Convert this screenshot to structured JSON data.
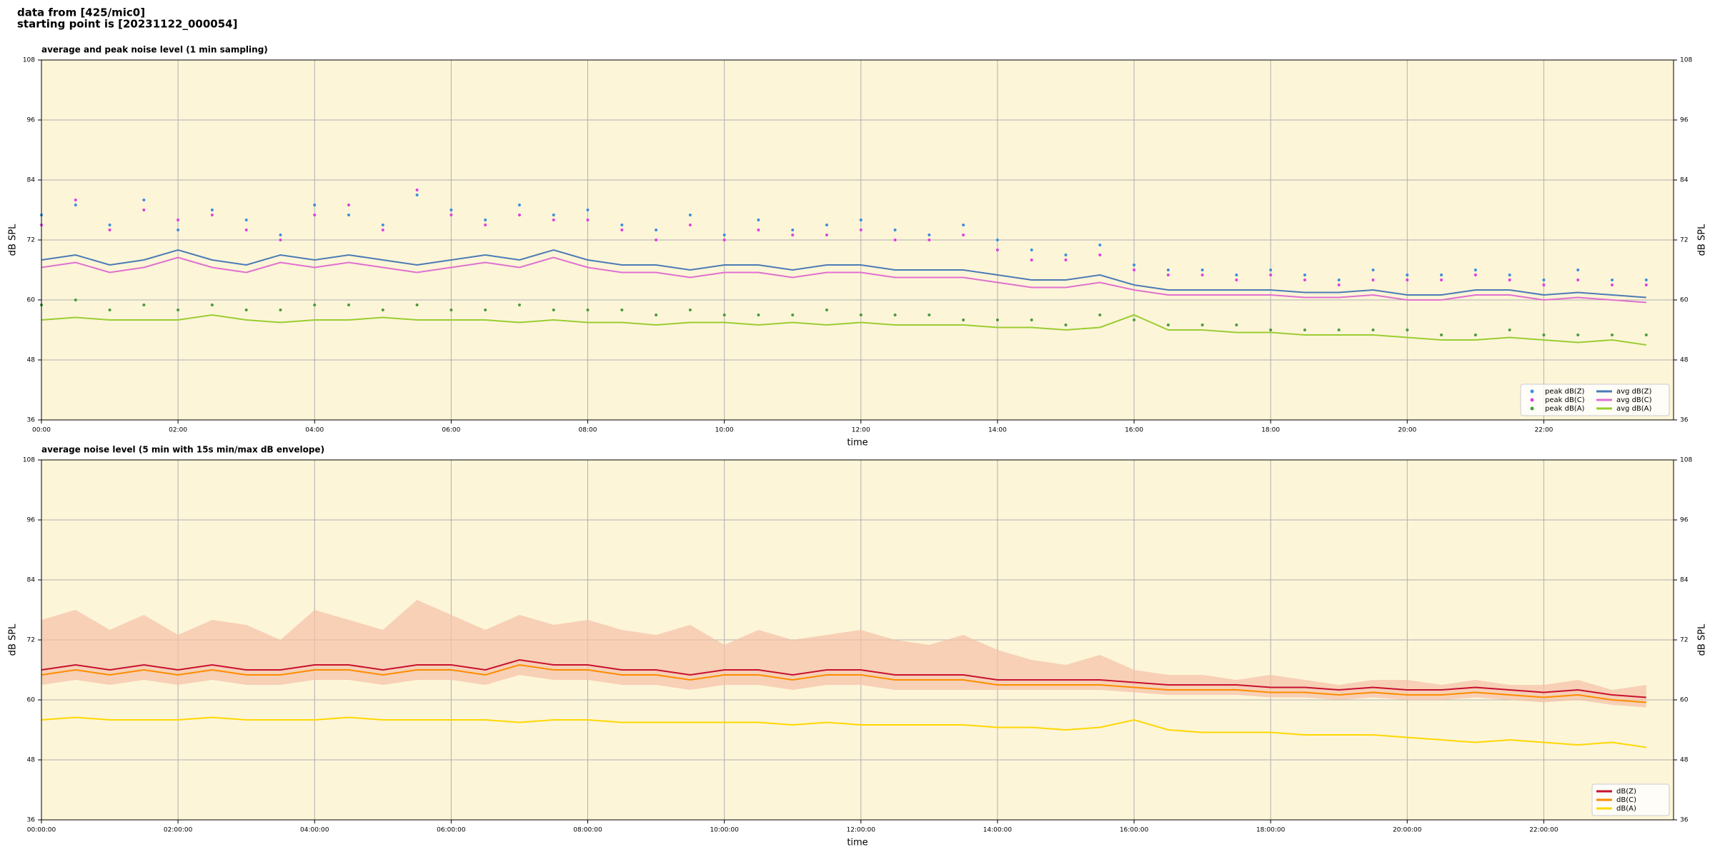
{
  "header": {
    "line1": "data from [425/mic0]",
    "line2": "starting point is [20231122_000054]"
  },
  "chart_data": [
    {
      "type": "line",
      "title": "average and peak noise level (1 min sampling)",
      "xlabel": "time",
      "ylabel": "dB SPL",
      "xlim": [
        0,
        23.9
      ],
      "ylim": [
        36,
        108
      ],
      "yticks": [
        36,
        48,
        60,
        72,
        84,
        96,
        108
      ],
      "xticks": [
        {
          "value": 0,
          "label": "00:00"
        },
        {
          "value": 2,
          "label": "02:00"
        },
        {
          "value": 4,
          "label": "04:00"
        },
        {
          "value": 6,
          "label": "06:00"
        },
        {
          "value": 8,
          "label": "08:00"
        },
        {
          "value": 10,
          "label": "10:00"
        },
        {
          "value": 12,
          "label": "12:00"
        },
        {
          "value": 14,
          "label": "14:00"
        },
        {
          "value": 16,
          "label": "16:00"
        },
        {
          "value": 18,
          "label": "18:00"
        },
        {
          "value": 20,
          "label": "20:00"
        },
        {
          "value": 22,
          "label": "22:00"
        }
      ],
      "grid": true,
      "legend": "lower right",
      "legend_columns": 2,
      "background": "#fdf5d8",
      "x": [
        0,
        0.5,
        1,
        1.5,
        2,
        2.5,
        3,
        3.5,
        4,
        4.5,
        5,
        5.5,
        6,
        6.5,
        7,
        7.5,
        8,
        8.5,
        9,
        9.5,
        10,
        10.5,
        11,
        11.5,
        12,
        12.5,
        13,
        13.5,
        14,
        14.5,
        15,
        15.5,
        16,
        16.5,
        17,
        17.5,
        18,
        18.5,
        19,
        19.5,
        20,
        20.5,
        21,
        21.5,
        22,
        22.5,
        23,
        23.5
      ],
      "series": [
        {
          "name": "peak dB(Z)",
          "mode": "scatter",
          "color": "#3c8fdc",
          "values": [
            77,
            79,
            75,
            80,
            74,
            78,
            76,
            73,
            79,
            77,
            75,
            81,
            78,
            76,
            79,
            77,
            78,
            75,
            74,
            77,
            73,
            76,
            74,
            75,
            76,
            74,
            73,
            75,
            72,
            70,
            69,
            71,
            67,
            66,
            66,
            65,
            66,
            65,
            64,
            66,
            65,
            65,
            66,
            65,
            64,
            66,
            64,
            64
          ]
        },
        {
          "name": "peak dB(C)",
          "mode": "scatter",
          "color": "#e040e0",
          "values": [
            75,
            80,
            74,
            78,
            76,
            77,
            74,
            72,
            77,
            79,
            74,
            82,
            77,
            75,
            77,
            76,
            76,
            74,
            72,
            75,
            72,
            74,
            73,
            73,
            74,
            72,
            72,
            73,
            70,
            68,
            68,
            69,
            66,
            65,
            65,
            64,
            65,
            64,
            63,
            64,
            64,
            64,
            65,
            64,
            63,
            64,
            63,
            63
          ]
        },
        {
          "name": "peak dB(A)",
          "mode": "scatter",
          "color": "#4a9a40",
          "values": [
            59,
            60,
            58,
            59,
            58,
            59,
            58,
            58,
            59,
            59,
            58,
            59,
            58,
            58,
            59,
            58,
            58,
            58,
            57,
            58,
            57,
            57,
            57,
            58,
            57,
            57,
            57,
            56,
            56,
            56,
            55,
            57,
            56,
            55,
            55,
            55,
            54,
            54,
            54,
            54,
            54,
            53,
            53,
            54,
            53,
            53,
            53,
            53
          ]
        },
        {
          "name": "avg dB(Z)",
          "mode": "line",
          "color": "#4a7bb5",
          "values": [
            68,
            69,
            67,
            68,
            70,
            68,
            67,
            69,
            68,
            69,
            68,
            67,
            68,
            69,
            68,
            70,
            68,
            67,
            67,
            66,
            67,
            67,
            66,
            67,
            67,
            66,
            66,
            66,
            65,
            64,
            64,
            65,
            63,
            62,
            62,
            62,
            62,
            61.5,
            61.5,
            62,
            61,
            61,
            62,
            62,
            61,
            61.5,
            61,
            60.5
          ]
        },
        {
          "name": "avg dB(C)",
          "mode": "line",
          "color": "#e070d0",
          "values": [
            66.5,
            67.5,
            65.5,
            66.5,
            68.5,
            66.5,
            65.5,
            67.5,
            66.5,
            67.5,
            66.5,
            65.5,
            66.5,
            67.5,
            66.5,
            68.5,
            66.5,
            65.5,
            65.5,
            64.5,
            65.5,
            65.5,
            64.5,
            65.5,
            65.5,
            64.5,
            64.5,
            64.5,
            63.5,
            62.5,
            62.5,
            63.5,
            62,
            61,
            61,
            61,
            61,
            60.5,
            60.5,
            61,
            60,
            60,
            61,
            61,
            60,
            60.5,
            60,
            59.5
          ]
        },
        {
          "name": "avg dB(A)",
          "mode": "line",
          "color": "#9acd32",
          "values": [
            56,
            56.5,
            56,
            56,
            56,
            57,
            56,
            55.5,
            56,
            56,
            56.5,
            56,
            56,
            56,
            55.5,
            56,
            55.5,
            55.5,
            55,
            55.5,
            55.5,
            55,
            55.5,
            55,
            55.5,
            55,
            55,
            55,
            54.5,
            54.5,
            54,
            54.5,
            57,
            54,
            54,
            53.5,
            53.5,
            53,
            53,
            53,
            52.5,
            52,
            52,
            52.5,
            52,
            51.5,
            52,
            51
          ]
        }
      ]
    },
    {
      "type": "line",
      "title": "average noise level (5 min with 15s min/max dB envelope)",
      "xlabel": "time",
      "ylabel": "dB SPL",
      "xlim": [
        0,
        23.9
      ],
      "ylim": [
        36,
        108
      ],
      "yticks": [
        36,
        48,
        60,
        72,
        84,
        96,
        108
      ],
      "xticks": [
        {
          "value": 0,
          "label": "00:00:00"
        },
        {
          "value": 2,
          "label": "02:00:00"
        },
        {
          "value": 4,
          "label": "04:00:00"
        },
        {
          "value": 6,
          "label": "06:00:00"
        },
        {
          "value": 8,
          "label": "08:00:00"
        },
        {
          "value": 10,
          "label": "10:00:00"
        },
        {
          "value": 12,
          "label": "12:00:00"
        },
        {
          "value": 14,
          "label": "14:00:00"
        },
        {
          "value": 16,
          "label": "16:00:00"
        },
        {
          "value": 18,
          "label": "18:00:00"
        },
        {
          "value": 20,
          "label": "20:00:00"
        },
        {
          "value": 22,
          "label": "22:00:00"
        }
      ],
      "grid": true,
      "legend": "lower right",
      "legend_columns": 1,
      "background": "#fdf5d8",
      "x": [
        0,
        0.5,
        1,
        1.5,
        2,
        2.5,
        3,
        3.5,
        4,
        4.5,
        5,
        5.5,
        6,
        6.5,
        7,
        7.5,
        8,
        8.5,
        9,
        9.5,
        10,
        10.5,
        11,
        11.5,
        12,
        12.5,
        13,
        13.5,
        14,
        14.5,
        15,
        15.5,
        16,
        16.5,
        17,
        17.5,
        18,
        18.5,
        19,
        19.5,
        20,
        20.5,
        21,
        21.5,
        22,
        22.5,
        23,
        23.5
      ],
      "envelope": {
        "color": "#f4c0a8",
        "low": [
          63,
          64,
          63,
          64,
          63,
          64,
          63,
          63,
          64,
          64,
          63,
          64,
          64,
          63,
          65,
          64,
          64,
          63,
          63,
          62,
          63,
          63,
          62,
          63,
          63,
          62,
          62,
          62,
          62,
          62,
          62,
          62,
          61.5,
          61,
          61,
          61,
          60.5,
          60.5,
          60,
          60.5,
          60,
          60,
          60.5,
          60,
          59.5,
          60,
          59,
          58.5
        ],
        "high": [
          76,
          78,
          74,
          77,
          73,
          76,
          75,
          72,
          78,
          76,
          74,
          80,
          77,
          74,
          77,
          75,
          76,
          74,
          73,
          75,
          71,
          74,
          72,
          73,
          74,
          72,
          71,
          73,
          70,
          68,
          67,
          69,
          66,
          65,
          65,
          64,
          65,
          64,
          63,
          64,
          64,
          63,
          64,
          63,
          63,
          64,
          62,
          63
        ]
      },
      "series": [
        {
          "name": "dB(Z)",
          "mode": "line",
          "color": "#c8102e",
          "values": [
            66,
            67,
            66,
            67,
            66,
            67,
            66,
            66,
            67,
            67,
            66,
            67,
            67,
            66,
            68,
            67,
            67,
            66,
            66,
            65,
            66,
            66,
            65,
            66,
            66,
            65,
            65,
            65,
            64,
            64,
            64,
            64,
            63.5,
            63,
            63,
            63,
            62.5,
            62.5,
            62,
            62.5,
            62,
            62,
            62.5,
            62,
            61.5,
            62,
            61,
            60.5
          ]
        },
        {
          "name": "dB(C)",
          "mode": "line",
          "color": "#ff8c00",
          "values": [
            65,
            66,
            65,
            66,
            65,
            66,
            65,
            65,
            66,
            66,
            65,
            66,
            66,
            65,
            67,
            66,
            66,
            65,
            65,
            64,
            65,
            65,
            64,
            65,
            65,
            64,
            64,
            64,
            63,
            63,
            63,
            63,
            62.5,
            62,
            62,
            62,
            61.5,
            61.5,
            61,
            61.5,
            61,
            61,
            61.5,
            61,
            60.5,
            61,
            60,
            59.5
          ]
        },
        {
          "name": "dB(A)",
          "mode": "line",
          "color": "#ffd700",
          "values": [
            56,
            56.5,
            56,
            56,
            56,
            56.5,
            56,
            56,
            56,
            56.5,
            56,
            56,
            56,
            56,
            55.5,
            56,
            56,
            55.5,
            55.5,
            55.5,
            55.5,
            55.5,
            55,
            55.5,
            55,
            55,
            55,
            55,
            54.5,
            54.5,
            54,
            54.5,
            56,
            54,
            53.5,
            53.5,
            53.5,
            53,
            53,
            53,
            52.5,
            52,
            51.5,
            52,
            51.5,
            51,
            51.5,
            50.5
          ]
        }
      ]
    }
  ]
}
